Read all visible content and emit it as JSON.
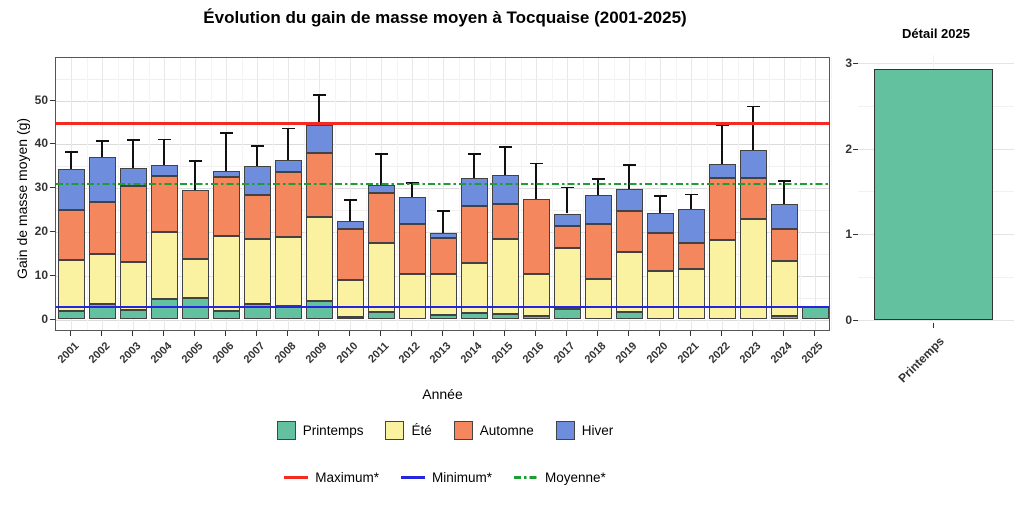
{
  "title": "Évolution du gain de masse moyen à Tocquaise (2001-2025)",
  "chart_data": [
    {
      "type": "bar",
      "stacked": true,
      "title": "Évolution du gain de masse moyen à Tocquaise (2001-2025)",
      "xlabel": "Année",
      "ylabel": "Gain de masse moyen (g)",
      "categories": [
        "2001",
        "2002",
        "2003",
        "2004",
        "2005",
        "2006",
        "2007",
        "2008",
        "2009",
        "2010",
        "2011",
        "2012",
        "2013",
        "2014",
        "2015",
        "2016",
        "2017",
        "2018",
        "2019",
        "2020",
        "2021",
        "2022",
        "2023",
        "2024",
        "2025"
      ],
      "series": [
        {
          "name": "Printemps",
          "color": "#63C1A0",
          "values": [
            2.0,
            3.5,
            2.2,
            4.6,
            4.8,
            2.0,
            3.6,
            3.1,
            4.2,
            0.5,
            1.7,
            0,
            1.0,
            1.5,
            1.2,
            0.7,
            2.4,
            0,
            1.7,
            0,
            0,
            0,
            0,
            0.8,
            2.9
          ]
        },
        {
          "name": "Été",
          "color": "#FBF2A1",
          "values": [
            11.6,
            11.4,
            10.9,
            15.4,
            8.9,
            17.1,
            14.7,
            15.8,
            19.2,
            8.5,
            15.8,
            10.5,
            9.5,
            11.5,
            17.1,
            9.8,
            14.0,
            9.2,
            13.6,
            11.1,
            11.5,
            18.1,
            22.9,
            12.6,
            0
          ]
        },
        {
          "name": "Automne",
          "color": "#F5875F",
          "values": [
            11.3,
            11.9,
            17.4,
            12.8,
            15.8,
            13.5,
            10.1,
            14.8,
            14.7,
            11.6,
            11.3,
            11.2,
            8.0,
            12.9,
            8.1,
            17.1,
            4.9,
            12.5,
            9.5,
            8.6,
            6.0,
            14.1,
            9.3,
            7.2,
            0
          ]
        },
        {
          "name": "Hiver",
          "color": "#6E8EDD",
          "values": [
            9.4,
            10.4,
            4.2,
            2.4,
            0,
            1.4,
            6.6,
            2.7,
            6.4,
            1.9,
            1.9,
            6.3,
            1.3,
            6.5,
            6.5,
            0,
            2.9,
            6.7,
            5.1,
            4.7,
            7.7,
            3.4,
            6.4,
            5.8,
            0
          ]
        }
      ],
      "error_bar_tops": [
        38.5,
        41.0,
        41.2,
        41.3,
        36.4,
        42.8,
        39.8,
        43.8,
        51.5,
        27.5,
        37.9,
        31.4,
        25.0,
        37.9,
        39.6,
        35.8,
        30.3,
        32.2,
        35.4,
        28.4,
        28.7,
        44.5,
        48.8,
        31.8,
        null
      ],
      "reference_lines": [
        {
          "label": "Maximum*",
          "value": 44.8,
          "color": "#F52B22",
          "style": "solid"
        },
        {
          "label": "Minimum*",
          "value": 2.9,
          "color": "#2525E0",
          "style": "solid"
        },
        {
          "label": "Moyenne*",
          "value": 31.0,
          "color": "#1E9E32",
          "style": "dash-dot"
        }
      ],
      "yticks": [
        0,
        10,
        20,
        30,
        40,
        50
      ],
      "minor_yticks": [
        5,
        15,
        25,
        35,
        45,
        55
      ],
      "ylim": [
        0,
        59.7
      ],
      "grid": true,
      "legend_position": "bottom"
    },
    {
      "type": "bar",
      "title": "Détail 2025",
      "categories": [
        "Printemps"
      ],
      "values": [
        2.93
      ],
      "bar_color": "#63C1A0",
      "yticks": [
        0,
        1,
        2,
        3
      ],
      "minor_yticks": [
        0.5,
        1.5,
        2.5
      ],
      "ylim": [
        0,
        3.1
      ],
      "grid": true
    }
  ],
  "legend": {
    "seasons": [
      {
        "label": "Printemps"
      },
      {
        "label": "Été"
      },
      {
        "label": "Automne"
      },
      {
        "label": "Hiver"
      }
    ],
    "lines": [
      {
        "label": "Maximum*"
      },
      {
        "label": "Minimum*"
      },
      {
        "label": "Moyenne*"
      }
    ]
  }
}
